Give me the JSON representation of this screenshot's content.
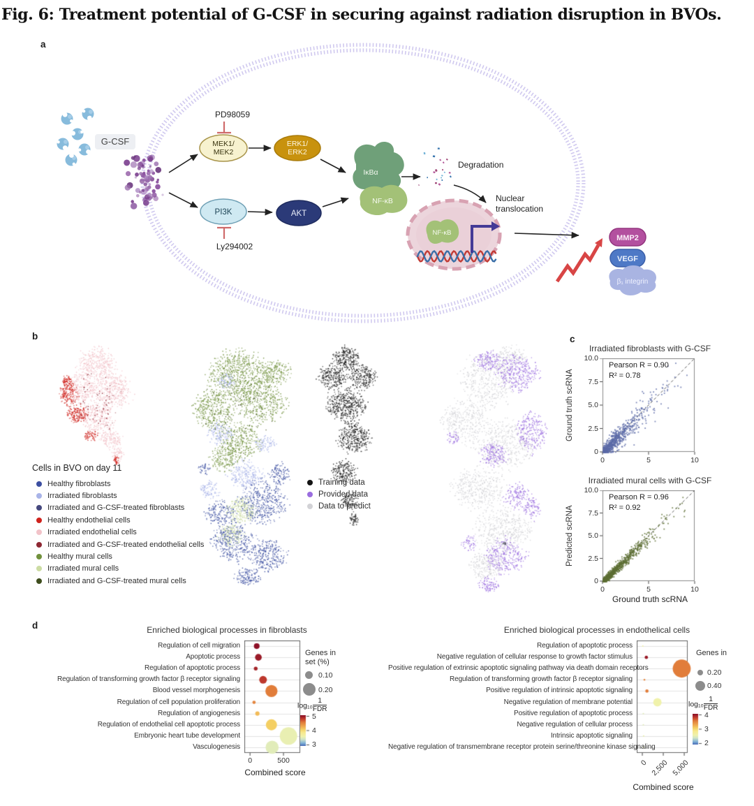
{
  "figure": {
    "title": "Fig. 6: Treatment potential of G-CSF in securing against radiation disruption in BVOs.",
    "panels": {
      "a": "a",
      "b": "b",
      "c": "c",
      "d": "d"
    }
  },
  "panel_a": {
    "ligand": "G-CSF",
    "inhibitor_top": "PD98059",
    "inhibitor_bottom": "Ly294002",
    "mek_line1": "MEK1/",
    "mek_line2": "MEK2",
    "erk_line1": "ERK1/",
    "erk_line2": "ERK2",
    "pi3k": "PI3K",
    "akt": "AKT",
    "ikba": "IκBα",
    "nfkb": "NF-κB",
    "nfkb_nucleus": "NF-κB",
    "degradation": "Degradation",
    "nuclear_line1": "Nuclear",
    "nuclear_line2": "translocation",
    "mmp2": "MMP2",
    "vegf": "VEGF",
    "integrin": "β₁ integrin",
    "colors": {
      "membrane": "#cdc6ee",
      "ligand": "#87bbdc",
      "receptor": "#8a4f9e",
      "mek_fill": "#f7f2cf",
      "erk_fill": "#c8920e",
      "pi3k_fill": "#cfe9f2",
      "akt_fill": "#2b3a78",
      "ikba_fill": "#6fa079",
      "nfkb_fill": "#a3c177",
      "nucleus_fill": "#ecd5dc",
      "inhibitor": "#cf6a6a",
      "mmp2_fill": "#b3509f",
      "vegf_fill": "#4e79c6",
      "integrin_fill": "#a9b4e2",
      "upregulation_arrow": "#d84545"
    }
  },
  "panel_b": {
    "legend_title": "Cells in BVO on day 11",
    "cell_legend": [
      {
        "label": "Healthy fibroblasts",
        "color": "#3c4fa1"
      },
      {
        "label": "Irradiated fibroblasts",
        "color": "#a9b4e8"
      },
      {
        "label": "Irradiated and G-CSF-treated fibroblasts",
        "color": "#45487e"
      },
      {
        "label": "Healthy endothelial cells",
        "color": "#cf221c"
      },
      {
        "label": "Irradiated endothelial cells",
        "color": "#f2c3c9"
      },
      {
        "label": "Irradiated and G-CSF-treated endothelial cells",
        "color": "#8e2833"
      },
      {
        "label": "Healthy mural cells",
        "color": "#71913d"
      },
      {
        "label": "Irradiated mural cells",
        "color": "#ccdca3"
      },
      {
        "label": "Irradiated and G-CSF-treated mural cells",
        "color": "#3e4d1d"
      }
    ],
    "data_legend": [
      {
        "label": "Training data",
        "color": "#141414"
      },
      {
        "label": "Provided data",
        "color": "#9a6ddf"
      },
      {
        "label": "Data to predict",
        "color": "#d2d2d6"
      }
    ]
  },
  "chart_data": [
    {
      "id": "irradiated_fibroblasts_gcsf",
      "type": "scatter",
      "title": "Irradiated fibroblasts with G-CSF",
      "xlabel": "",
      "ylabel": "Ground truth scRNA",
      "xlim": [
        0,
        10
      ],
      "ylim": [
        0,
        10
      ],
      "xticks": [
        0,
        5,
        10
      ],
      "xtick_labels": [
        "0",
        "5",
        "10"
      ],
      "yticks": [
        10,
        7.5,
        5,
        2.5,
        0
      ],
      "ytick_labels": [
        "10.0",
        "7.5",
        "5.0",
        "2.5",
        "0"
      ],
      "pearson_r": 0.9,
      "r_squared": 0.78,
      "annotation_line1": "Pearson R = 0.90",
      "annotation_line2": "R² = 0.78",
      "point_color": "#5b6aa8",
      "identity_line": "dashed"
    },
    {
      "id": "irradiated_mural_gcsf",
      "type": "scatter",
      "title": "Irradiated mural cells with G-CSF",
      "xlabel": "Ground truth scRNA",
      "ylabel": "Predicted scRNA",
      "xlim": [
        0,
        10
      ],
      "ylim": [
        0,
        10
      ],
      "xticks": [
        0,
        5,
        10
      ],
      "xtick_labels": [
        "0",
        "5",
        "10"
      ],
      "yticks": [
        10,
        7.5,
        5,
        2.5,
        0
      ],
      "ytick_labels": [
        "10.0",
        "7.5",
        "5.0",
        "2.5",
        "0"
      ],
      "pearson_r": 0.96,
      "r_squared": 0.92,
      "annotation_line1": "Pearson R = 0.96",
      "annotation_line2": "R² = 0.92",
      "point_color": "#5c6e33",
      "identity_line": "dashed"
    },
    {
      "id": "enriched_processes_fibroblasts",
      "type": "bubble",
      "title": "Enriched biological processes in fibroblasts",
      "xlabel": "Combined score",
      "xticks": [
        0,
        500
      ],
      "xtick_labels": [
        "0",
        "500"
      ],
      "xlim": [
        -85,
        750
      ],
      "size_legend": {
        "title_line1": "Genes in",
        "title_line2": "set (%)",
        "entries": [
          {
            "label": "0.10",
            "pct": 0.1
          },
          {
            "label": "0.20",
            "pct": 0.2
          }
        ]
      },
      "colorbar": {
        "label_prefix": "log₁₀",
        "numerator": "1",
        "denominator": "FDR",
        "tick_labels": [
          "5",
          "4",
          "3"
        ],
        "domain": [
          3,
          5
        ]
      },
      "rows": [
        {
          "label": "Regulation of cell migration",
          "score": 100,
          "genes_pct": 0.06,
          "neglog10_fdr": 5.0
        },
        {
          "label": "Apoptotic process",
          "score": 125,
          "genes_pct": 0.08,
          "neglog10_fdr": 4.95
        },
        {
          "label": "Regulation of apoptotic process",
          "score": 85,
          "genes_pct": 0.02,
          "neglog10_fdr": 4.9
        },
        {
          "label": "Regulation of transforming growth factor β receptor signaling",
          "score": 195,
          "genes_pct": 0.1,
          "neglog10_fdr": 4.8
        },
        {
          "label": "Blood vessel morphogenesis",
          "score": 320,
          "genes_pct": 0.19,
          "neglog10_fdr": 4.55
        },
        {
          "label": "Regulation of cell population proliferation",
          "score": 60,
          "genes_pct": 0.01,
          "neglog10_fdr": 4.5
        },
        {
          "label": "Regulation of angiogenesis",
          "score": 110,
          "genes_pct": 0.03,
          "neglog10_fdr": 4.2
        },
        {
          "label": "Regulation of endothelial cell apoptotic process",
          "score": 320,
          "genes_pct": 0.17,
          "neglog10_fdr": 4.1
        },
        {
          "label": "Embryonic heart tube development",
          "score": 575,
          "genes_pct": 0.3,
          "neglog10_fdr": 3.6
        },
        {
          "label": "Vasculogenesis",
          "score": 330,
          "genes_pct": 0.21,
          "neglog10_fdr": 3.55
        }
      ]
    },
    {
      "id": "enriched_processes_endothelial",
      "type": "bubble",
      "title": "Enriched biological processes in endothelical cells",
      "xlabel": "Combined score",
      "xticks": [
        0,
        2500,
        5000
      ],
      "xtick_labels": [
        "0",
        "2,500",
        "5,000"
      ],
      "xlim": [
        -670,
        5410
      ],
      "size_legend": {
        "title_line1": "Genes in",
        "title_line2": "set (%)",
        "entries": [
          {
            "label": "0.20",
            "pct": 0.2
          },
          {
            "label": "0.40",
            "pct": 0.4
          }
        ]
      },
      "colorbar": {
        "label_prefix": "log₁₀",
        "numerator": "1",
        "denominator": "FDR",
        "tick_labels": [
          "4",
          "3",
          "2"
        ],
        "domain": [
          2,
          4
        ]
      },
      "rows": [
        {
          "label": "Regulation of apoptotic process",
          "score": 60,
          "genes_pct": 0.01,
          "neglog10_fdr": 2.7
        },
        {
          "label": "Negative regulation of cellular response to growth factor stimulus",
          "score": 480,
          "genes_pct": 0.12,
          "neglog10_fdr": 3.95
        },
        {
          "label": "Positive regulation of extrinsic apoptotic signaling pathway via death domain receptors",
          "score": 4700,
          "genes_pct": 1.0,
          "neglog10_fdr": 3.55
        },
        {
          "label": "Regulation of transforming growth factor β receptor signaling",
          "score": 250,
          "genes_pct": 0.03,
          "neglog10_fdr": 3.5
        },
        {
          "label": "Positive regulation of intrinsic apoptotic signaling",
          "score": 550,
          "genes_pct": 0.12,
          "neglog10_fdr": 3.55
        },
        {
          "label": "Negative regulation of membrane potential",
          "score": 1800,
          "genes_pct": 0.42,
          "neglog10_fdr": 2.65
        },
        {
          "label": "Positive regulation of apoptotic process",
          "score": 120,
          "genes_pct": 0.01,
          "neglog10_fdr": 2.55
        },
        {
          "label": "Negative regulation of cellular process",
          "score": 120,
          "genes_pct": 0.01,
          "neglog10_fdr": 2.55
        },
        {
          "label": "Intrinsic apoptotic signaling",
          "score": 160,
          "genes_pct": 0.02,
          "neglog10_fdr": 2.6
        },
        {
          "label": "Negative regulation of transmembrane receptor protein serine/threonine kinase signaling",
          "score": 160,
          "genes_pct": 0.02,
          "neglog10_fdr": 2.6
        }
      ]
    }
  ]
}
